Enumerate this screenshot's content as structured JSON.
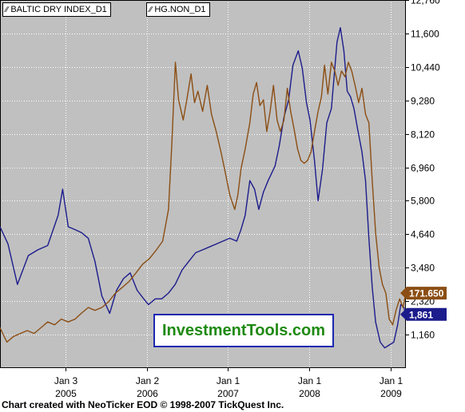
{
  "chart_data": {
    "type": "line",
    "x_ticks": [
      {
        "label": "Jan 3",
        "year": "2005",
        "date": "2005-01-03"
      },
      {
        "label": "Jan 2",
        "year": "2006",
        "date": "2006-01-02"
      },
      {
        "label": "Jan 1",
        "year": "2007",
        "date": "2007-01-01"
      },
      {
        "label": "Jan 1",
        "year": "2008",
        "date": "2008-01-01"
      },
      {
        "label": "Jan 1",
        "year": "2009",
        "date": "2009-01-01"
      }
    ],
    "x_range": [
      "2004-03-15",
      "2009-03-10"
    ],
    "y_ticks": [
      "12,760",
      "11,600",
      "10,440",
      "9,280",
      "8,120",
      "6,960",
      "5,800",
      "4,640",
      "3,480",
      "2,320",
      "1,160"
    ],
    "ylim": [
      0,
      12760
    ],
    "y_axis_side": "right",
    "grid": "dotted",
    "series": [
      {
        "name": "BALTIC DRY INDEX_D1",
        "color": "#1c1c8c",
        "last_value": "1,861",
        "points": [
          [
            "2004-03-15",
            4900
          ],
          [
            "2004-04-20",
            4300
          ],
          [
            "2004-06-01",
            2900
          ],
          [
            "2004-07-20",
            3900
          ],
          [
            "2004-09-01",
            4100
          ],
          [
            "2004-10-15",
            4250
          ],
          [
            "2004-12-01",
            5300
          ],
          [
            "2004-12-21",
            6200
          ],
          [
            "2005-01-15",
            4900
          ],
          [
            "2005-02-15",
            4800
          ],
          [
            "2005-03-15",
            4700
          ],
          [
            "2005-04-15",
            4500
          ],
          [
            "2005-05-15",
            3700
          ],
          [
            "2005-06-15",
            2500
          ],
          [
            "2005-07-20",
            1900
          ],
          [
            "2005-08-20",
            2700
          ],
          [
            "2005-09-20",
            3100
          ],
          [
            "2005-10-20",
            3300
          ],
          [
            "2005-11-20",
            2700
          ],
          [
            "2005-12-20",
            2400
          ],
          [
            "2006-01-10",
            2200
          ],
          [
            "2006-02-10",
            2400
          ],
          [
            "2006-03-10",
            2400
          ],
          [
            "2006-04-10",
            2600
          ],
          [
            "2006-05-10",
            2900
          ],
          [
            "2006-06-10",
            3400
          ],
          [
            "2006-07-10",
            3700
          ],
          [
            "2006-08-10",
            4000
          ],
          [
            "2006-09-10",
            4100
          ],
          [
            "2006-10-10",
            4200
          ],
          [
            "2006-11-10",
            4300
          ],
          [
            "2006-12-10",
            4400
          ],
          [
            "2007-01-10",
            4500
          ],
          [
            "2007-02-10",
            4400
          ],
          [
            "2007-03-01",
            4800
          ],
          [
            "2007-03-20",
            5300
          ],
          [
            "2007-04-10",
            6500
          ],
          [
            "2007-05-01",
            6200
          ],
          [
            "2007-05-20",
            5500
          ],
          [
            "2007-06-10",
            6100
          ],
          [
            "2007-07-01",
            6500
          ],
          [
            "2007-08-01",
            7000
          ],
          [
            "2007-08-20",
            7700
          ],
          [
            "2007-09-10",
            8700
          ],
          [
            "2007-10-01",
            9300
          ],
          [
            "2007-10-20",
            10500
          ],
          [
            "2007-11-13",
            11000
          ],
          [
            "2007-12-01",
            10400
          ],
          [
            "2007-12-20",
            9200
          ],
          [
            "2008-01-05",
            8600
          ],
          [
            "2008-01-25",
            7200
          ],
          [
            "2008-02-10",
            5800
          ],
          [
            "2008-03-01",
            6900
          ],
          [
            "2008-03-20",
            8500
          ],
          [
            "2008-04-10",
            9000
          ],
          [
            "2008-05-05",
            11300
          ],
          [
            "2008-05-20",
            11800
          ],
          [
            "2008-06-05",
            11000
          ],
          [
            "2008-06-20",
            9600
          ],
          [
            "2008-07-05",
            9400
          ],
          [
            "2008-07-20",
            9000
          ],
          [
            "2008-08-05",
            8300
          ],
          [
            "2008-08-25",
            7500
          ],
          [
            "2008-09-10",
            6500
          ],
          [
            "2008-09-25",
            4500
          ],
          [
            "2008-10-10",
            2800
          ],
          [
            "2008-10-25",
            1600
          ],
          [
            "2008-11-15",
            900
          ],
          [
            "2008-12-05",
            700
          ],
          [
            "2008-12-25",
            800
          ],
          [
            "2009-01-15",
            900
          ],
          [
            "2009-02-01",
            1500
          ],
          [
            "2009-02-15",
            2200
          ],
          [
            "2009-03-01",
            2100
          ],
          [
            "2009-03-10",
            1861
          ]
        ]
      },
      {
        "name": "HG.NON_D1",
        "color": "#8b4e14",
        "last_value": "171.650",
        "points": [
          [
            "2004-03-15",
            1400
          ],
          [
            "2004-04-15",
            900
          ],
          [
            "2004-05-15",
            1100
          ],
          [
            "2004-06-15",
            1200
          ],
          [
            "2004-07-15",
            1300
          ],
          [
            "2004-08-15",
            1200
          ],
          [
            "2004-09-15",
            1400
          ],
          [
            "2004-10-15",
            1600
          ],
          [
            "2004-11-15",
            1500
          ],
          [
            "2004-12-15",
            1700
          ],
          [
            "2005-01-15",
            1600
          ],
          [
            "2005-02-15",
            1700
          ],
          [
            "2005-03-15",
            1900
          ],
          [
            "2005-04-15",
            2100
          ],
          [
            "2005-05-15",
            2000
          ],
          [
            "2005-06-15",
            2100
          ],
          [
            "2005-07-15",
            2300
          ],
          [
            "2005-08-15",
            2600
          ],
          [
            "2005-09-15",
            2800
          ],
          [
            "2005-10-15",
            3000
          ],
          [
            "2005-11-15",
            3300
          ],
          [
            "2005-12-15",
            3600
          ],
          [
            "2006-01-15",
            3800
          ],
          [
            "2006-02-15",
            4100
          ],
          [
            "2006-03-15",
            4400
          ],
          [
            "2006-04-10",
            5500
          ],
          [
            "2006-04-25",
            7800
          ],
          [
            "2006-05-11",
            10600
          ],
          [
            "2006-05-25",
            9300
          ],
          [
            "2006-06-15",
            8600
          ],
          [
            "2006-07-01",
            9300
          ],
          [
            "2006-07-20",
            10200
          ],
          [
            "2006-08-05",
            9200
          ],
          [
            "2006-08-20",
            9600
          ],
          [
            "2006-09-10",
            8900
          ],
          [
            "2006-10-01",
            9800
          ],
          [
            "2006-10-20",
            8800
          ],
          [
            "2006-11-10",
            8200
          ],
          [
            "2006-12-01",
            7500
          ],
          [
            "2006-12-20",
            6800
          ],
          [
            "2007-01-10",
            6000
          ],
          [
            "2007-02-01",
            5500
          ],
          [
            "2007-02-15",
            6000
          ],
          [
            "2007-03-01",
            6900
          ],
          [
            "2007-03-20",
            7600
          ],
          [
            "2007-04-10",
            8500
          ],
          [
            "2007-04-25",
            9500
          ],
          [
            "2007-05-10",
            9900
          ],
          [
            "2007-05-25",
            9100
          ],
          [
            "2007-06-10",
            9300
          ],
          [
            "2007-06-25",
            8200
          ],
          [
            "2007-07-10",
            8900
          ],
          [
            "2007-07-25",
            9800
          ],
          [
            "2007-08-10",
            8600
          ],
          [
            "2007-08-25",
            8200
          ],
          [
            "2007-09-10",
            8600
          ],
          [
            "2007-09-25",
            9700
          ],
          [
            "2007-10-10",
            8900
          ],
          [
            "2007-10-25",
            8300
          ],
          [
            "2007-11-10",
            7600
          ],
          [
            "2007-11-25",
            7200
          ],
          [
            "2007-12-10",
            7100
          ],
          [
            "2007-12-25",
            7200
          ],
          [
            "2008-01-10",
            7500
          ],
          [
            "2008-01-25",
            8200
          ],
          [
            "2008-02-10",
            8900
          ],
          [
            "2008-02-25",
            9400
          ],
          [
            "2008-03-10",
            10500
          ],
          [
            "2008-03-25",
            9500
          ],
          [
            "2008-04-10",
            10600
          ],
          [
            "2008-04-25",
            10300
          ],
          [
            "2008-05-10",
            9800
          ],
          [
            "2008-05-25",
            10300
          ],
          [
            "2008-06-10",
            10100
          ],
          [
            "2008-06-25",
            10600
          ],
          [
            "2008-07-10",
            10300
          ],
          [
            "2008-07-25",
            9800
          ],
          [
            "2008-08-10",
            9200
          ],
          [
            "2008-08-25",
            9700
          ],
          [
            "2008-09-10",
            8800
          ],
          [
            "2008-09-25",
            8500
          ],
          [
            "2008-10-10",
            6500
          ],
          [
            "2008-10-25",
            4700
          ],
          [
            "2008-11-10",
            3500
          ],
          [
            "2008-11-25",
            2900
          ],
          [
            "2008-12-10",
            2600
          ],
          [
            "2008-12-25",
            1700
          ],
          [
            "2009-01-10",
            1500
          ],
          [
            "2009-01-25",
            2000
          ],
          [
            "2009-02-10",
            2400
          ],
          [
            "2009-02-25",
            2100
          ],
          [
            "2009-03-10",
            2600
          ]
        ]
      }
    ]
  },
  "watermark": "InvestmentTools.com",
  "footer": "Chart created with NeoTicker EOD © 1998-2007 TickQuest Inc.",
  "colors": {
    "plot_background": "#c0c0c0",
    "watermark_text": "#1f8a12",
    "watermark_border": "#1b28b0"
  }
}
